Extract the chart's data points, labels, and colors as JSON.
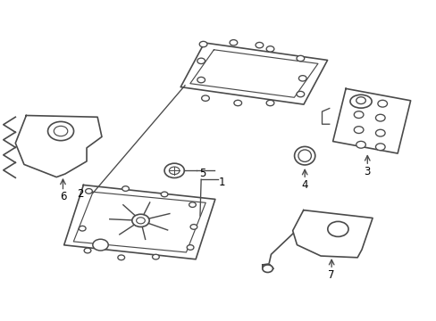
{
  "bg_color": "#ffffff",
  "line_color": "#4a4a4a",
  "line_width": 1.2,
  "fig_width": 4.89,
  "fig_height": 3.6,
  "dpi": 100
}
